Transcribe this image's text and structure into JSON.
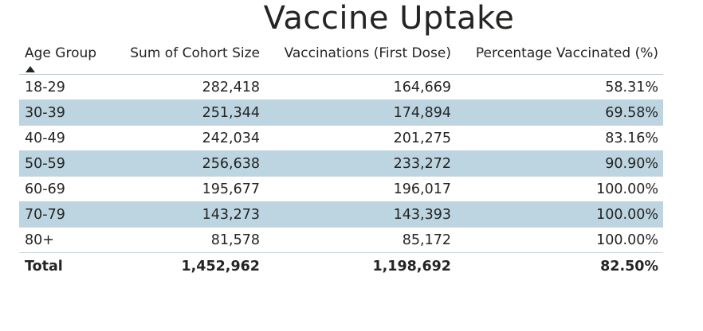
{
  "title": "Vaccine Uptake",
  "table": {
    "columns": [
      "Age Group",
      "Sum of Cohort Size",
      "Vaccinations (First Dose)",
      "Percentage Vaccinated (%)"
    ],
    "sort": {
      "column": "Age Group",
      "direction": "ascending",
      "icon": "sort-ascending-icon"
    },
    "rows": [
      [
        "18-29",
        "282,418",
        "164,669",
        "58.31%"
      ],
      [
        "30-39",
        "251,344",
        "174,894",
        "69.58%"
      ],
      [
        "40-49",
        "242,034",
        "201,275",
        "83.16%"
      ],
      [
        "50-59",
        "256,638",
        "233,272",
        "90.90%"
      ],
      [
        "60-69",
        "195,677",
        "196,017",
        "100.00%"
      ],
      [
        "70-79",
        "143,273",
        "143,393",
        "100.00%"
      ],
      [
        "80+",
        "81,578",
        "85,172",
        "100.00%"
      ]
    ],
    "total": [
      "Total",
      "1,452,962",
      "1,198,692",
      "82.50%"
    ]
  },
  "colors": {
    "band": "#bcd5e0",
    "text": "#252423",
    "grid": "#b8cdd8"
  }
}
